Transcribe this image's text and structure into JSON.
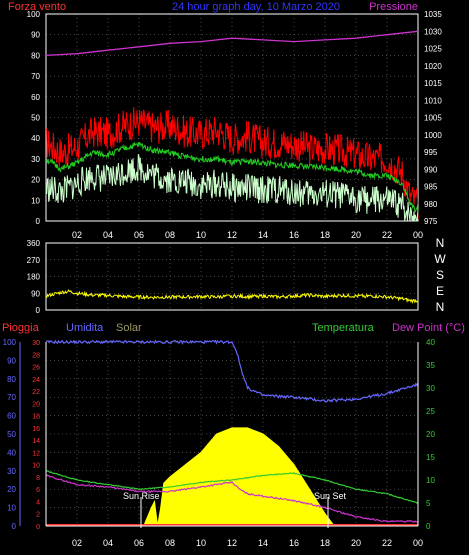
{
  "colors": {
    "wind": "#ff0000",
    "pressure": "#cc33cc",
    "wind_avg": "#22cc22",
    "wind_min": "#ccffcc",
    "direction": "#ffff00",
    "rain": "#ff3333",
    "humidity": "#6666ff",
    "solar": "#ffff00",
    "temperature": "#33cc33",
    "dewpoint": "#cc33cc",
    "grid": "#888888",
    "axis_text": "#ffffff"
  },
  "chart_data": [
    {
      "type": "line",
      "title": "24 hour graph day, 10 Marzo 2020",
      "left_label": "Forza vento",
      "right_label": "Pressione",
      "x_ticks": [
        "02",
        "04",
        "06",
        "08",
        "10",
        "12",
        "14",
        "16",
        "18",
        "20",
        "22",
        "00"
      ],
      "ylim_left": [
        0,
        100
      ],
      "y_ticks_left": [
        0,
        10,
        20,
        30,
        40,
        50,
        60,
        70,
        80,
        90,
        100
      ],
      "ylim_right": [
        975,
        1035
      ],
      "y_ticks_right": [
        975,
        980,
        985,
        990,
        995,
        1000,
        1005,
        1010,
        1015,
        1020,
        1025,
        1030,
        1035
      ],
      "series": [
        {
          "key": "wind",
          "axis": "left",
          "x": [
            0,
            1,
            2,
            3,
            4,
            5,
            6,
            7,
            8,
            9,
            10,
            11,
            12,
            13,
            14,
            15,
            16,
            17,
            18,
            19,
            20,
            21,
            22,
            23,
            23.5,
            24
          ],
          "values": [
            38,
            33,
            36,
            43,
            42,
            46,
            48,
            45,
            46,
            43,
            42,
            44,
            40,
            41,
            38,
            38,
            37,
            35,
            35,
            34,
            32,
            30,
            30,
            23,
            12,
            8
          ]
        },
        {
          "key": "wind_avg",
          "axis": "left",
          "x": [
            0,
            1,
            2,
            3,
            4,
            5,
            6,
            7,
            8,
            9,
            10,
            11,
            12,
            13,
            14,
            15,
            16,
            17,
            18,
            19,
            20,
            21,
            22,
            23,
            23.5,
            24
          ],
          "values": [
            30,
            25,
            28,
            33,
            32,
            35,
            37,
            34,
            33,
            31,
            30,
            30,
            28,
            29,
            28,
            27,
            27,
            26,
            26,
            25,
            24,
            22,
            22,
            18,
            8,
            5
          ]
        },
        {
          "key": "wind_min",
          "axis": "left",
          "x": [
            0,
            1,
            2,
            3,
            4,
            5,
            6,
            7,
            8,
            9,
            10,
            11,
            12,
            13,
            14,
            15,
            16,
            17,
            18,
            19,
            20,
            21,
            22,
            23,
            23.5,
            24
          ],
          "values": [
            16,
            14,
            18,
            22,
            20,
            24,
            26,
            22,
            20,
            19,
            17,
            18,
            16,
            16,
            15,
            15,
            14,
            13,
            13,
            12,
            11,
            10,
            10,
            7,
            3,
            2
          ]
        },
        {
          "key": "pressure",
          "axis": "right",
          "x": [
            0,
            2,
            4,
            6,
            8,
            10,
            12,
            14,
            16,
            18,
            20,
            22,
            24
          ],
          "values": [
            1023,
            1023.5,
            1024.5,
            1025.5,
            1026.5,
            1027,
            1028,
            1027.5,
            1027,
            1027.5,
            1028,
            1029,
            1030
          ]
        }
      ]
    },
    {
      "type": "line",
      "right_label_letters": [
        "N",
        "W",
        "S",
        "E",
        "N"
      ],
      "ylim": [
        0,
        360
      ],
      "y_ticks": [
        0,
        90,
        180,
        270,
        360
      ],
      "series": [
        {
          "key": "direction",
          "x": [
            0,
            0.5,
            1,
            1.5,
            2,
            3,
            4,
            5,
            6,
            7,
            8,
            9,
            10,
            11,
            12,
            13,
            14,
            15,
            16,
            17,
            18,
            19,
            20,
            21,
            22,
            23,
            23.5,
            24
          ],
          "values": [
            75,
            85,
            95,
            100,
            90,
            80,
            78,
            72,
            70,
            68,
            70,
            70,
            72,
            70,
            75,
            72,
            75,
            70,
            75,
            80,
            72,
            78,
            75,
            75,
            70,
            60,
            50,
            50
          ]
        }
      ]
    },
    {
      "type": "line",
      "legend": [
        "Pioggia",
        "Umidita",
        "Solar",
        "Temperatura",
        "Dew Point (°C)"
      ],
      "x_ticks": [
        "02",
        "04",
        "06",
        "08",
        "10",
        "12",
        "14",
        "16",
        "18",
        "20",
        "22",
        "00"
      ],
      "ylim_humidity": [
        0,
        100
      ],
      "y_ticks_humidity": [
        0,
        10,
        20,
        30,
        40,
        50,
        60,
        70,
        80,
        90,
        100
      ],
      "ylim_rain": [
        0,
        30
      ],
      "y_ticks_rain": [
        0,
        2,
        4,
        6,
        8,
        10,
        12,
        14,
        16,
        18,
        20,
        22,
        24,
        26,
        28,
        30
      ],
      "ylim_temp": [
        0,
        40
      ],
      "y_ticks_temp": [
        0,
        5,
        10,
        15,
        20,
        25,
        30,
        35,
        40
      ],
      "annotations": [
        "Sun Rise",
        "Sun Set"
      ],
      "series": [
        {
          "key": "humidity",
          "axis": "humidity",
          "x": [
            0,
            2,
            4,
            6,
            8,
            10,
            12,
            12.3,
            12.6,
            13,
            14,
            16,
            18,
            20,
            22,
            24
          ],
          "values": [
            100,
            100,
            100,
            100,
            100,
            100,
            100,
            95,
            85,
            75,
            71,
            70,
            68,
            69,
            72,
            77
          ]
        },
        {
          "key": "temperature",
          "axis": "temp",
          "x": [
            0,
            2,
            4,
            6,
            8,
            10,
            12,
            14,
            16,
            18,
            20,
            22,
            24
          ],
          "values": [
            12,
            10,
            9,
            8,
            8.5,
            9.5,
            10,
            11,
            11.5,
            10,
            8,
            7,
            5
          ]
        },
        {
          "key": "dewpoint",
          "axis": "temp",
          "x": [
            0,
            2,
            4,
            6,
            8,
            10,
            12,
            12.5,
            13,
            14,
            16,
            18,
            20,
            22,
            24
          ],
          "values": [
            11,
            9,
            8.5,
            7.5,
            7.5,
            8.5,
            9.5,
            8,
            7,
            6.5,
            5.5,
            4,
            2,
            1,
            1
          ]
        },
        {
          "key": "solar",
          "axis": "rain",
          "x": [
            6.3,
            6.8,
            7,
            7.2,
            7.4,
            7.6,
            8,
            9,
            10,
            11,
            12,
            13,
            14,
            15,
            16,
            17,
            18,
            18.6
          ],
          "values": [
            0,
            3,
            4,
            0,
            3,
            7,
            8,
            10,
            12,
            15,
            16,
            16,
            15,
            13,
            10,
            6,
            2,
            0
          ]
        }
      ]
    }
  ]
}
